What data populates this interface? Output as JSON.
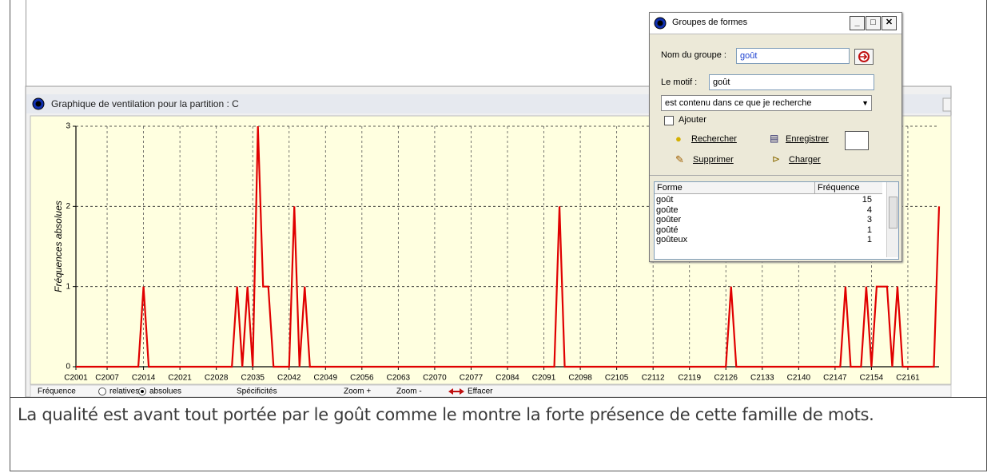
{
  "window_title": "Graphique de ventilation pour la partition : C",
  "chart_data": {
    "type": "line",
    "ylabel": "Fréquences absolues",
    "x": [
      2001,
      2013,
      2014,
      2015,
      2031,
      2032,
      2033,
      2034,
      2035,
      2036,
      2037,
      2038,
      2039,
      2042,
      2043,
      2044,
      2045,
      2046,
      2093,
      2094,
      2095,
      2126,
      2127,
      2128,
      2148,
      2149,
      2150,
      2152,
      2153,
      2154,
      2155,
      2156,
      2157,
      2158,
      2159,
      2160,
      2166,
      2167
    ],
    "series": [
      {
        "color": "#e00000",
        "values": [
          0,
          0,
          1,
          0,
          0,
          1,
          0,
          1,
          0,
          3,
          1,
          1,
          0,
          0,
          2,
          0,
          1,
          0,
          0,
          2,
          0,
          0,
          1,
          0,
          0,
          1,
          0,
          0,
          1,
          0,
          1,
          1,
          1,
          0,
          1,
          0,
          0,
          2
        ]
      }
    ],
    "xlim": [
      2001,
      2167
    ],
    "xticks": [
      {
        "value": 2001,
        "label": "C2001"
      },
      {
        "value": 2007,
        "label": "C2007"
      },
      {
        "value": 2014,
        "label": "C2014"
      },
      {
        "value": 2021,
        "label": "C2021"
      },
      {
        "value": 2028,
        "label": "C2028"
      },
      {
        "value": 2035,
        "label": "C2035"
      },
      {
        "value": 2042,
        "label": "C2042"
      },
      {
        "value": 2049,
        "label": "C2049"
      },
      {
        "value": 2056,
        "label": "C2056"
      },
      {
        "value": 2063,
        "label": "C2063"
      },
      {
        "value": 2070,
        "label": "C2070"
      },
      {
        "value": 2077,
        "label": "C2077"
      },
      {
        "value": 2084,
        "label": "C2084"
      },
      {
        "value": 2091,
        "label": "C2091"
      },
      {
        "value": 2098,
        "label": "C2098"
      },
      {
        "value": 2105,
        "label": "C2105"
      },
      {
        "value": 2112,
        "label": "C2112"
      },
      {
        "value": 2119,
        "label": "C2119"
      },
      {
        "value": 2126,
        "label": "C2126"
      },
      {
        "value": 2133,
        "label": "C2133"
      },
      {
        "value": 2140,
        "label": "C2140"
      },
      {
        "value": 2147,
        "label": "C2147"
      },
      {
        "value": 2154,
        "label": "C2154"
      },
      {
        "value": 2161,
        "label": "C2161"
      }
    ],
    "ylim": [
      0,
      3
    ],
    "yticks": [
      0,
      1,
      2,
      3
    ],
    "grid": true
  },
  "toolbar": {
    "frequency": "Fréquence",
    "relatives": "relatives",
    "absolues": "absolues",
    "specificites": "Spécificités",
    "zoom_in": "Zoom +",
    "zoom_out": "Zoom -",
    "clear": "Effacer"
  },
  "dialog": {
    "title": "Groupes de formes",
    "group_name_label": "Nom du groupe :",
    "group_name": "goût",
    "pattern_label": "Le motif :",
    "pattern": "goût",
    "match_mode": "est contenu dans ce que je recherche",
    "add_label": "Ajouter",
    "buttons": [
      "Rechercher",
      "Enregistrer",
      "Supprimer",
      "Charger"
    ],
    "table": {
      "columns": [
        "Forme",
        "Fréquence"
      ],
      "rows": [
        [
          "goût",
          15
        ],
        [
          "goûte",
          4
        ],
        [
          "goûter",
          3
        ],
        [
          "goûté",
          1
        ],
        [
          "goûteux",
          1
        ]
      ]
    }
  },
  "caption": "La qualité est avant tout portée par le goût comme le montre la forte présence de cette famille de mots."
}
